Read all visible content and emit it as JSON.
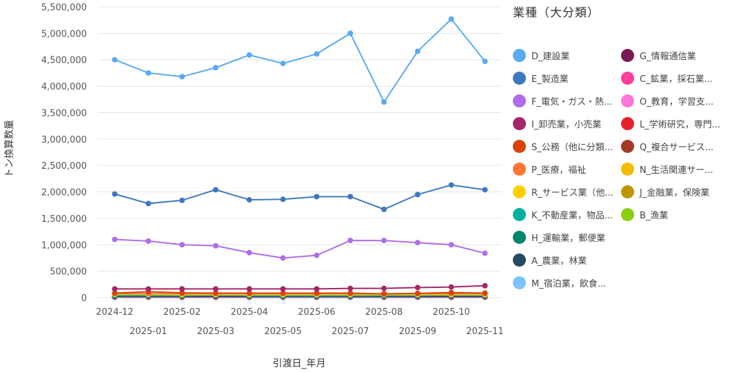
{
  "chart_data": {
    "type": "line",
    "title": "",
    "xlabel": "引渡日_年月",
    "ylabel": "トン換算数量",
    "ylim": [
      0,
      5500000
    ],
    "yticks": [
      0,
      500000,
      1000000,
      1500000,
      2000000,
      2500000,
      3000000,
      3500000,
      4000000,
      4500000,
      5000000,
      5500000
    ],
    "ytick_labels": [
      "0",
      "500,000",
      "1,000,000",
      "1,500,000",
      "2,000,000",
      "2,500,000",
      "3,000,000",
      "3,500,000",
      "4,000,000",
      "4,500,000",
      "5,000,000",
      "5,500,000"
    ],
    "categories": [
      "2024-12",
      "2025-01",
      "2025-02",
      "2025-03",
      "2025-04",
      "2025-05",
      "2025-06",
      "2025-07",
      "2025-08",
      "2025-09",
      "2025-10",
      "2025-11"
    ],
    "grid": true,
    "legend_position": "right",
    "legend_title": "業種（大分類）",
    "series": [
      {
        "name": "D_建設業",
        "color": "#5aaaf7",
        "values": [
          4500000,
          4250000,
          4180000,
          4350000,
          4590000,
          4430000,
          4610000,
          5000000,
          3700000,
          4660000,
          5270000,
          4470000
        ]
      },
      {
        "name": "E_製造業",
        "color": "#3f78c2",
        "values": [
          1960000,
          1780000,
          1840000,
          2040000,
          1850000,
          1860000,
          1910000,
          1910000,
          1670000,
          1950000,
          2130000,
          2040000
        ]
      },
      {
        "name": "F_電気・ガス・熱...",
        "color": "#b06de8",
        "values": [
          1100000,
          1070000,
          1000000,
          980000,
          850000,
          750000,
          800000,
          1080000,
          1080000,
          1040000,
          1000000,
          840000
        ]
      },
      {
        "name": "I_卸売業，小売業",
        "color": "#a3276b",
        "values": [
          165000,
          165000,
          165000,
          165000,
          165000,
          165000,
          165000,
          175000,
          175000,
          190000,
          200000,
          225000
        ]
      },
      {
        "name": "S_公務（他に分類...",
        "color": "#d9420a",
        "values": [
          85000,
          110000,
          90000,
          85000,
          85000,
          85000,
          85000,
          85000,
          70000,
          80000,
          95000,
          85000
        ]
      },
      {
        "name": "P_医療，福祉",
        "color": "#ff7733",
        "values": [
          75000,
          75000,
          75000,
          75000,
          75000,
          75000,
          75000,
          75000,
          75000,
          75000,
          75000,
          75000
        ]
      },
      {
        "name": "R_サービス業（他...",
        "color": "#ffd000",
        "values": [
          60000,
          60000,
          55000,
          55000,
          55000,
          55000,
          55000,
          55000,
          55000,
          55000,
          55000,
          55000
        ]
      },
      {
        "name": "K_不動産業，物品...",
        "color": "#00b3a0",
        "values": [
          45000,
          45000,
          45000,
          45000,
          45000,
          45000,
          45000,
          45000,
          45000,
          45000,
          45000,
          45000
        ]
      },
      {
        "name": "H_運輸業，郵便業",
        "color": "#00856e",
        "values": [
          35000,
          40000,
          35000,
          55000,
          35000,
          35000,
          35000,
          35000,
          35000,
          40000,
          50000,
          40000
        ]
      },
      {
        "name": "A_農業，林業",
        "color": "#264a60",
        "values": [
          25000,
          25000,
          25000,
          25000,
          25000,
          25000,
          25000,
          25000,
          25000,
          25000,
          25000,
          25000
        ]
      },
      {
        "name": "M_宿泊業，飲食...",
        "color": "#7cc4ff",
        "values": [
          20000,
          20000,
          20000,
          20000,
          20000,
          20000,
          20000,
          20000,
          20000,
          20000,
          20000,
          20000
        ]
      },
      {
        "name": "G_情報通信業",
        "color": "#7a1b57",
        "values": [
          15000,
          15000,
          15000,
          15000,
          15000,
          15000,
          15000,
          15000,
          15000,
          15000,
          15000,
          15000
        ]
      },
      {
        "name": "C_鉱業，採石業...",
        "color": "#ff3d9a",
        "values": [
          12000,
          12000,
          12000,
          12000,
          12000,
          12000,
          12000,
          12000,
          12000,
          12000,
          12000,
          12000
        ]
      },
      {
        "name": "O_教育，学習支...",
        "color": "#ff77d9",
        "values": [
          10000,
          10000,
          10000,
          10000,
          10000,
          10000,
          10000,
          10000,
          10000,
          10000,
          10000,
          10000
        ]
      },
      {
        "name": "L_学術研究，専門...",
        "color": "#e8202e",
        "values": [
          9000,
          9000,
          9000,
          9000,
          9000,
          9000,
          9000,
          9000,
          9000,
          9000,
          9000,
          9000
        ]
      },
      {
        "name": "Q_複合サービス...",
        "color": "#a63824",
        "values": [
          8000,
          8000,
          8000,
          8000,
          8000,
          8000,
          8000,
          8000,
          8000,
          8000,
          8000,
          8000
        ]
      },
      {
        "name": "N_生活関連サー...",
        "color": "#f0bd00",
        "values": [
          7000,
          7000,
          7000,
          7000,
          7000,
          7000,
          7000,
          7000,
          7000,
          7000,
          7000,
          7000
        ]
      },
      {
        "name": "J_金融業，保険業",
        "color": "#bf9600",
        "values": [
          6000,
          6000,
          6000,
          6000,
          6000,
          6000,
          6000,
          6000,
          6000,
          6000,
          6000,
          6000
        ]
      },
      {
        "name": "B_漁業",
        "color": "#8ccf14",
        "values": [
          5000,
          5000,
          5000,
          5000,
          5000,
          5000,
          5000,
          5000,
          5000,
          5000,
          5000,
          5000
        ]
      }
    ]
  },
  "legend": {
    "title": "業種（大分類）",
    "left_column": [
      {
        "label": "D_建設業",
        "color": "#5aaaf7"
      },
      {
        "label": "E_製造業",
        "color": "#3f78c2"
      },
      {
        "label": "F_電気・ガス・熱...",
        "color": "#b06de8"
      },
      {
        "label": "I_卸売業，小売業",
        "color": "#a3276b"
      },
      {
        "label": "S_公務（他に分類...",
        "color": "#d9420a"
      },
      {
        "label": "P_医療，福祉",
        "color": "#ff7733"
      },
      {
        "label": "R_サービス業（他...",
        "color": "#ffd000"
      },
      {
        "label": "K_不動産業，物品...",
        "color": "#00b3a0"
      },
      {
        "label": "H_運輸業，郵便業",
        "color": "#00856e"
      },
      {
        "label": "A_農業，林業",
        "color": "#264a60"
      },
      {
        "label": "M_宿泊業，飲食...",
        "color": "#7cc4ff"
      }
    ],
    "right_column": [
      {
        "label": "G_情報通信業",
        "color": "#7a1b57"
      },
      {
        "label": "C_鉱業，採石業...",
        "color": "#ff3d9a"
      },
      {
        "label": "O_教育，学習支...",
        "color": "#ff77d9"
      },
      {
        "label": "L_学術研究，専門...",
        "color": "#e8202e"
      },
      {
        "label": "Q_複合サービス...",
        "color": "#a63824"
      },
      {
        "label": "N_生活関連サー...",
        "color": "#f0bd00"
      },
      {
        "label": "J_金融業，保険業",
        "color": "#bf9600"
      },
      {
        "label": "B_漁業",
        "color": "#8ccf14"
      }
    ]
  }
}
